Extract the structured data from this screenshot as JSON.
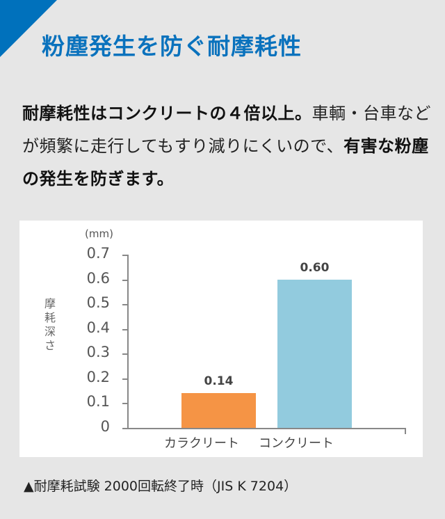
{
  "header": {
    "title": "粉塵発生を防ぐ耐摩耗性",
    "accent_color": "#0071bc"
  },
  "lead": {
    "bold1": "耐摩耗性はコンクリートの４倍以上。",
    "normal1": "車輌・台車などが頻繁に走行してもすり減りにくいので、",
    "bold2": "有害な粉塵の発生を防ぎます。"
  },
  "chart_data": {
    "type": "bar",
    "title": "",
    "unit": "(mm)",
    "xlabel": "",
    "ylabel": "摩耗深さ",
    "ylim": [
      0,
      0.7
    ],
    "yticks": [
      "0",
      "0.1",
      "0.2",
      "0.3",
      "0.4",
      "0.5",
      "0.6",
      "0.7"
    ],
    "categories": [
      "カラクリート",
      "コンクリート"
    ],
    "values": [
      0.14,
      0.6
    ],
    "value_labels": [
      "0.14",
      "0.60"
    ],
    "colors": [
      "#f59445",
      "#92cbde"
    ],
    "grid": false,
    "legend": false
  },
  "note": "▲耐摩耗試験 2000回転終了時（JIS K 7204）"
}
